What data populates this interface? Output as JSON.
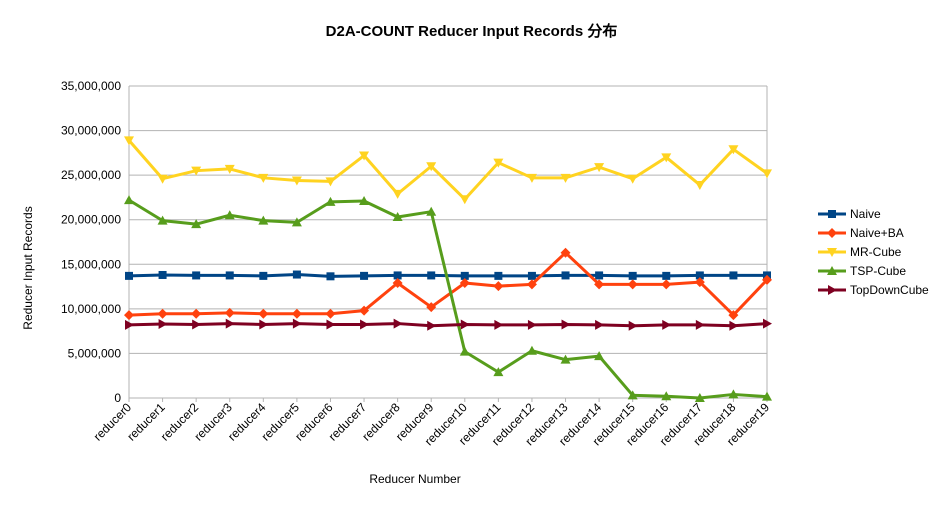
{
  "chart_data": {
    "type": "line",
    "title": "D2A-COUNT  Reducer Input Records  分布",
    "xlabel": "Reducer Number",
    "ylabel": "Reducer Input Records",
    "ylim": [
      0,
      35000000
    ],
    "yticks": [
      0,
      5000000,
      10000000,
      15000000,
      20000000,
      25000000,
      30000000,
      35000000
    ],
    "ytick_labels": [
      "0",
      "5,000,000",
      "10,000,000",
      "15,000,000",
      "20,000,000",
      "25,000,000",
      "30,000,000",
      "35,000,000"
    ],
    "grid": "horizontal",
    "legend_position": "right",
    "categories": [
      "reducer0",
      "reducer1",
      "reducer2",
      "reducer3",
      "reducer4",
      "reducer5",
      "reducer6",
      "reducer7",
      "reducer8",
      "reducer9",
      "reducer10",
      "reducer11",
      "reducer12",
      "reducer13",
      "reducer14",
      "reducer15",
      "reducer16",
      "reducer17",
      "reducer18",
      "reducer19"
    ],
    "series": [
      {
        "name": "Naive",
        "color": "#004586",
        "marker": "square",
        "values": [
          13700000,
          13800000,
          13750000,
          13750000,
          13700000,
          13850000,
          13650000,
          13700000,
          13750000,
          13750000,
          13700000,
          13700000,
          13700000,
          13750000,
          13750000,
          13700000,
          13700000,
          13750000,
          13750000,
          13750000
        ]
      },
      {
        "name": "Naive+BA",
        "color": "#ff420e",
        "marker": "diamond",
        "values": [
          9300000,
          9450000,
          9450000,
          9550000,
          9450000,
          9450000,
          9450000,
          9800000,
          12900000,
          10200000,
          12900000,
          12550000,
          12750000,
          16300000,
          12750000,
          12750000,
          12750000,
          13000000,
          9300000,
          13250000
        ]
      },
      {
        "name": "MR-Cube",
        "color": "#ffd320",
        "marker": "triangle-down",
        "values": [
          28900000,
          24600000,
          25500000,
          25700000,
          24700000,
          24400000,
          24300000,
          27200000,
          22900000,
          26000000,
          22300000,
          26400000,
          24700000,
          24700000,
          25900000,
          24600000,
          27000000,
          23900000,
          27900000,
          25200000
        ]
      },
      {
        "name": "TSP-Cube",
        "color": "#579d1c",
        "marker": "triangle-up",
        "values": [
          22200000,
          19900000,
          19500000,
          20500000,
          19900000,
          19700000,
          22000000,
          22100000,
          20300000,
          20900000,
          5200000,
          2900000,
          5300000,
          4300000,
          4700000,
          300000,
          200000,
          0,
          400000,
          150000
        ]
      },
      {
        "name": "TopDownCube",
        "color": "#7e0021",
        "marker": "triangle-right",
        "values": [
          8200000,
          8300000,
          8250000,
          8350000,
          8250000,
          8350000,
          8250000,
          8250000,
          8350000,
          8100000,
          8250000,
          8200000,
          8200000,
          8250000,
          8200000,
          8100000,
          8200000,
          8200000,
          8100000,
          8350000
        ]
      }
    ]
  }
}
